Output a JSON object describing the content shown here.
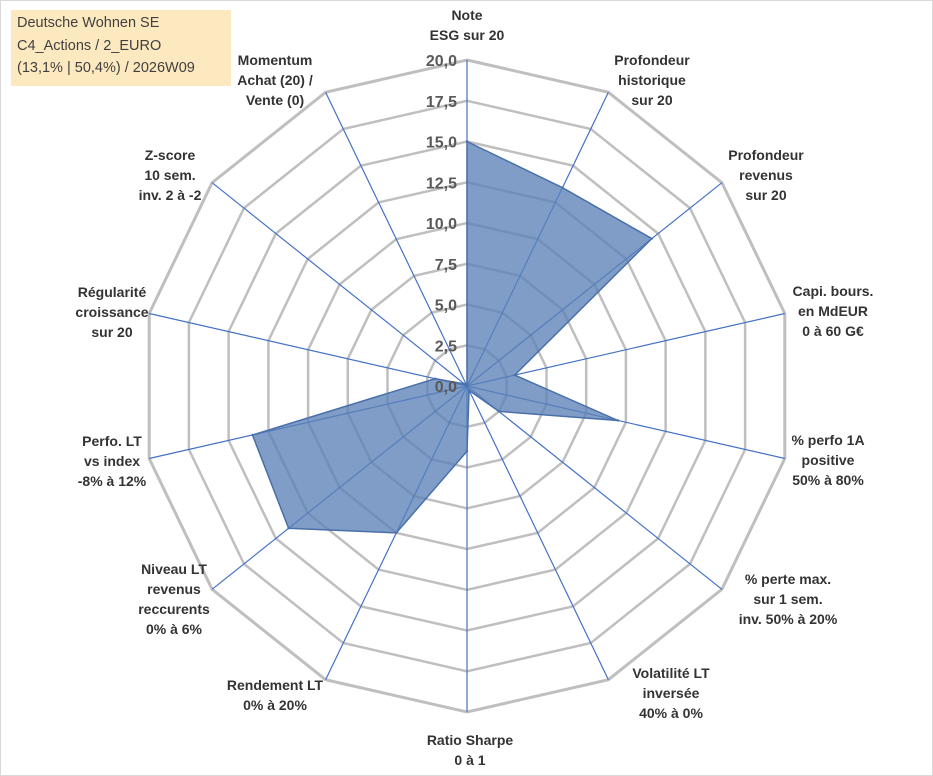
{
  "chart_data": {
    "type": "radar",
    "title": {
      "line1": "Deutsche Wohnen SE",
      "line2": "C4_Actions / 2_EURO",
      "line3": "(13,1% | 50,4%) / 2026W09"
    },
    "axes": [
      {
        "label": [
          "Note",
          "ESG sur 20"
        ]
      },
      {
        "label": [
          "Profondeur",
          "historique",
          "sur 20"
        ]
      },
      {
        "label": [
          "Profondeur",
          "revenus",
          "sur 20"
        ]
      },
      {
        "label": [
          "Capi. bours.",
          "en MdEUR",
          "0 à 60 G€"
        ]
      },
      {
        "label": [
          "% perfo 1A",
          "positive",
          "50% à 80%"
        ]
      },
      {
        "label": [
          "% perte max.",
          "sur 1 sem.",
          "inv. 50% à 20%"
        ]
      },
      {
        "label": [
          "Volatilité LT",
          "inversée",
          "40% à 0%"
        ]
      },
      {
        "label": [
          "Ratio Sharpe",
          "0 à 1"
        ]
      },
      {
        "label": [
          "Rendement LT",
          "0% à 20%"
        ]
      },
      {
        "label": [
          "Niveau LT",
          "revenus",
          "reccurents",
          "0% à 6%"
        ]
      },
      {
        "label": [
          "Perfo. LT",
          "vs index",
          "-8% à 12%"
        ]
      },
      {
        "label": [
          "Régularité",
          "croissance",
          "sur 20"
        ]
      },
      {
        "label": [
          "Z-score",
          "10 sem.",
          "inv. 2 à -2"
        ]
      },
      {
        "label": [
          "Momentum",
          "Achat (20) /",
          "Vente (0)"
        ]
      }
    ],
    "values": [
      15.0,
      13.5,
      14.5,
      3.0,
      9.5,
      2.5,
      0.3,
      4.0,
      10.0,
      14.0,
      13.5,
      2.0,
      0.2,
      0.0
    ],
    "ticks": [
      "0,0",
      "2,5",
      "5,0",
      "7,5",
      "10,0",
      "12,5",
      "15,0",
      "17,5",
      "20,0"
    ],
    "range": [
      0,
      20
    ],
    "grid": true,
    "legend": "none",
    "colors": {
      "fill": "#5b82b7",
      "stroke": "#4a70aa",
      "grid": "#bfbfbf",
      "spokes": "#4472c4",
      "title_bg": "#fde9bf"
    }
  }
}
